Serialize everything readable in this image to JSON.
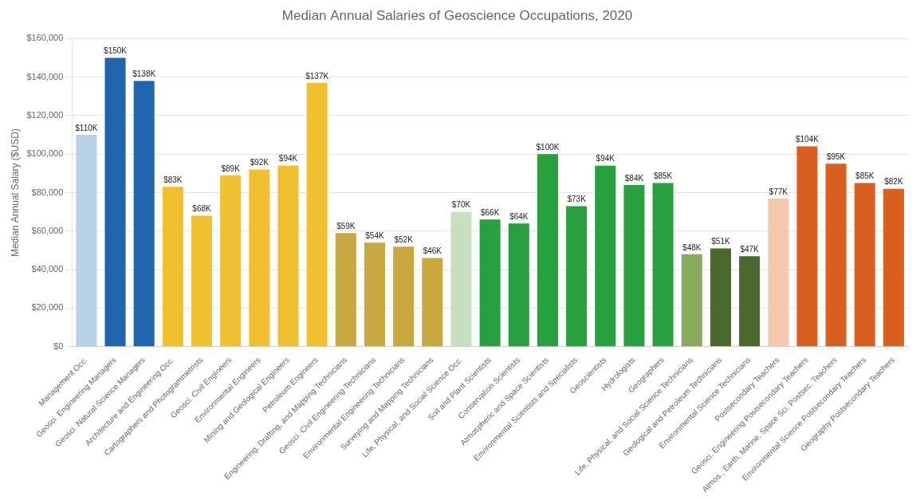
{
  "chart_data": {
    "type": "bar",
    "title": "Median Annual Salaries of Geoscience Occupations, 2020",
    "ylabel": "Median Annual Salary ($USD)",
    "categories": [
      "Management Occ.",
      "Geosci. Engineering Managers",
      "Geosci. Natural Science Managers",
      "Architecture and Engineering Occ.",
      "Cartographers and Photogrammetrists",
      "Geosci. Civil Engineers",
      "Environmental Engineers",
      "Mining and Geological Engineers",
      "Petroleum Engineers",
      "Engineering, Drafting, and Mapping Technicians",
      "Geosci. Civil Engineering Technicians",
      "Environmental Engineering Technicians",
      "Surveying and Mapping Technicians",
      "Life, Physical, and Social Science Occ.",
      "Soil and Plant Scientists",
      "Conservation Scientists",
      "Atmospheric and Space Scientists",
      "Environmental Scientists and Specialists",
      "Geoscientists",
      "Hydrologists",
      "Geographers",
      "Life, Physical, and Social Science Technicians",
      "Geological and Petroleum Technicians",
      "Environmental Science Technicians",
      "Postsecondary Teachers",
      "Geosci. Engineering Postsecondary Teachers",
      "Atmos., Earth, Marine, Space Sci. Postsec. Teachers",
      "Environmental Science Postsecondary Teachers",
      "Geography Postsecondary Teachers"
    ],
    "values": [
      110000,
      150000,
      138000,
      83000,
      68000,
      89000,
      92000,
      94000,
      137000,
      59000,
      54000,
      52000,
      46000,
      70000,
      66000,
      64000,
      100000,
      73000,
      94000,
      84000,
      85000,
      48000,
      51000,
      47000,
      77000,
      104000,
      95000,
      85000,
      82000
    ],
    "value_labels": [
      "$110K",
      "$150K",
      "$138K",
      "$83K",
      "$68K",
      "$89K",
      "$92K",
      "$94K",
      "$137K",
      "$59K",
      "$54K",
      "$52K",
      "$46K",
      "$70K",
      "$66K",
      "$64K",
      "$100K",
      "$73K",
      "$94K",
      "$84K",
      "$85K",
      "$48K",
      "$51K",
      "$47K",
      "$77K",
      "$104K",
      "$95K",
      "$85K",
      "$82K"
    ],
    "colors": [
      "#b8d0e8",
      "#2166ac",
      "#2166ac",
      "#f0c030",
      "#f0c030",
      "#f0c030",
      "#f0c030",
      "#f0c030",
      "#f0c030",
      "#c8a840",
      "#c8a840",
      "#c8a840",
      "#c8a840",
      "#c8dfc0",
      "#28a040",
      "#28a040",
      "#28a040",
      "#28a040",
      "#28a040",
      "#28a040",
      "#28a040",
      "#8aab60",
      "#4a6830",
      "#4a6830",
      "#f5c8b0",
      "#d96020",
      "#d96020",
      "#d96020",
      "#d96020"
    ],
    "ylim": [
      0,
      160000
    ],
    "yticks": [
      {
        "value": 0,
        "label": "$0"
      },
      {
        "value": 20000,
        "label": "$20,000"
      },
      {
        "value": 40000,
        "label": "$40,000"
      },
      {
        "value": 60000,
        "label": "$60,000"
      },
      {
        "value": 80000,
        "label": "$80,000"
      },
      {
        "value": 100000,
        "label": "$100,000"
      },
      {
        "value": 120000,
        "label": "$120,000"
      },
      {
        "value": 140000,
        "label": "$140,000"
      },
      {
        "value": 160000,
        "label": "$160,000"
      }
    ],
    "grid": true,
    "data_labels": true
  }
}
